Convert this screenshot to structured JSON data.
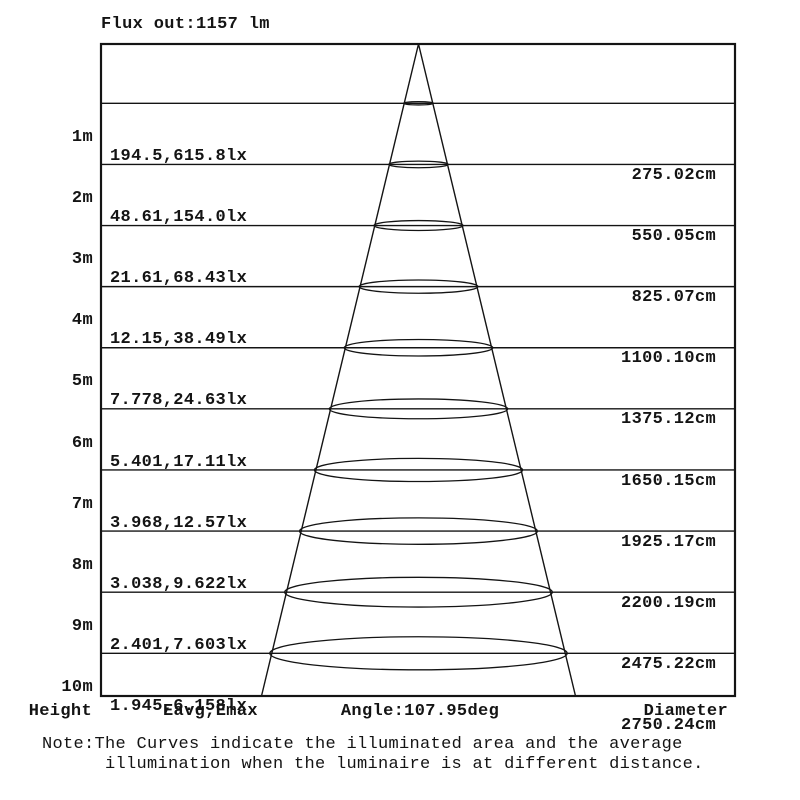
{
  "page": {
    "background": "#ffffff",
    "text_color": "#141414",
    "line_color": "#141414"
  },
  "header": {
    "flux_label": "Flux out:1157 lm"
  },
  "chart_data": {
    "type": "table",
    "variant": "illuminance-cone-diagram",
    "title": "Flux out:1157 lm",
    "flux_lm": 1157,
    "beam_angle_deg": 107.95,
    "angle_label": "Angle:107.95deg",
    "columns": [
      "Height",
      "Eavg,Emax",
      "Diameter"
    ],
    "grid": true,
    "legend_position": "none",
    "heights_m": [
      1,
      2,
      3,
      4,
      5,
      6,
      7,
      8,
      9,
      10
    ],
    "eavg_lx": [
      194.5,
      48.61,
      21.61,
      12.15,
      7.778,
      5.401,
      3.968,
      3.038,
      2.401,
      1.945
    ],
    "emax_lx": [
      615.8,
      154.0,
      68.43,
      38.49,
      24.63,
      17.11,
      12.57,
      9.622,
      7.603,
      6.158
    ],
    "diameter_cm": [
      275.02,
      550.05,
      825.07,
      1100.1,
      1375.12,
      1650.15,
      1925.17,
      2200.19,
      2475.22,
      2750.24
    ],
    "rows": [
      {
        "height": "1m",
        "eavg_emax": "194.5,615.8lx",
        "diameter": "275.02cm"
      },
      {
        "height": "2m",
        "eavg_emax": "48.61,154.0lx",
        "diameter": "550.05cm"
      },
      {
        "height": "3m",
        "eavg_emax": "21.61,68.43lx",
        "diameter": "825.07cm"
      },
      {
        "height": "4m",
        "eavg_emax": "12.15,38.49lx",
        "diameter": "1100.10cm"
      },
      {
        "height": "5m",
        "eavg_emax": "7.778,24.63lx",
        "diameter": "1375.12cm"
      },
      {
        "height": "6m",
        "eavg_emax": "5.401,17.11lx",
        "diameter": "1650.15cm"
      },
      {
        "height": "7m",
        "eavg_emax": "3.968,12.57lx",
        "diameter": "1925.17cm"
      },
      {
        "height": "8m",
        "eavg_emax": "3.038,9.622lx",
        "diameter": "2200.19cm"
      },
      {
        "height": "9m",
        "eavg_emax": "2.401,7.603lx",
        "diameter": "2475.22cm"
      },
      {
        "height": "10m",
        "eavg_emax": "1.945,6.158lx",
        "diameter": "2750.24cm"
      }
    ]
  },
  "footer": {
    "height_label": "Height",
    "eavg_label": "Eavg,Emax",
    "angle_label": "Angle:107.95deg",
    "diameter_label": "Diameter"
  },
  "note": {
    "line1": "Note:The Curves indicate the illuminated area and the average",
    "line2": "illumination when the luminaire is at different distance."
  }
}
